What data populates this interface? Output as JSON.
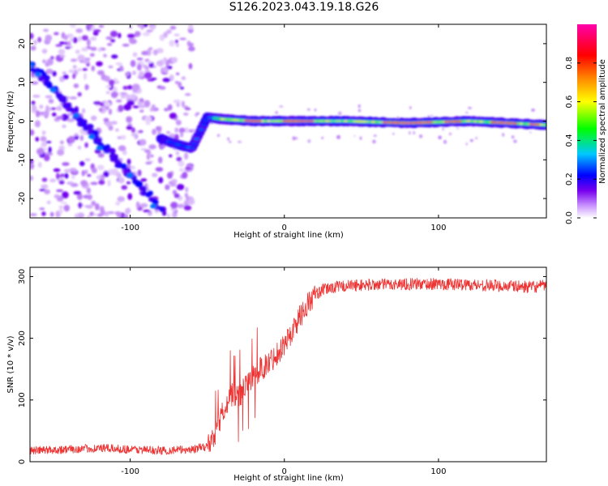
{
  "figure": {
    "title": "S126.2023.043.19.18.G26"
  },
  "chart_data": [
    {
      "type": "heatmap",
      "xlabel": "Height of straight line (km)",
      "ylabel": "Frequency (Hz)",
      "xlim": [
        -165,
        170
      ],
      "ylim": [
        -25,
        25
      ],
      "xticks": [
        -100,
        0,
        100
      ],
      "yticks": [
        -20,
        -10,
        0,
        10,
        20
      ],
      "colorbar": {
        "label": "Normalized spectral amplitude",
        "range": [
          0,
          1
        ],
        "ticks": [
          0.0,
          0.2,
          0.4,
          0.6,
          0.8
        ],
        "colormap": [
          "#ffffff",
          "#7700ee",
          "#0000ff",
          "#00c8ff",
          "#00ff00",
          "#ffff00",
          "#ff8800",
          "#ff0000",
          "#ff00aa"
        ]
      },
      "features": {
        "diagonal_track": {
          "x": [
            -165,
            -80
          ],
          "y": [
            15,
            -23
          ]
        },
        "scatter_region_x": [
          -165,
          -60
        ],
        "ridge": {
          "x": [
            -80,
            -70,
            -60,
            -50,
            -40,
            -20,
            0,
            40,
            80,
            120,
            170
          ],
          "y": [
            -4.5,
            -6,
            -7,
            1,
            0.5,
            0,
            0,
            0,
            -0.5,
            0,
            -1
          ]
        }
      }
    },
    {
      "type": "line",
      "xlabel": "Height of straight line (km)",
      "ylabel": "SNR (10 * v/v)",
      "xlim": [
        -165,
        170
      ],
      "ylim": [
        0,
        315
      ],
      "xticks": [
        -100,
        0,
        100
      ],
      "yticks": [
        0,
        100,
        200,
        300
      ],
      "color": "#ee3333",
      "x": [
        -165,
        -140,
        -120,
        -100,
        -80,
        -60,
        -50,
        -45,
        -40,
        -35,
        -30,
        -25,
        -20,
        -15,
        -10,
        -5,
        0,
        5,
        10,
        15,
        20,
        25,
        30,
        40,
        60,
        80,
        100,
        120,
        140,
        160,
        170
      ],
      "values": [
        18,
        20,
        22,
        20,
        18,
        20,
        25,
        45,
        80,
        110,
        105,
        120,
        140,
        150,
        160,
        175,
        190,
        210,
        235,
        255,
        270,
        278,
        282,
        285,
        287,
        288,
        288,
        287,
        285,
        283,
        285
      ]
    }
  ]
}
